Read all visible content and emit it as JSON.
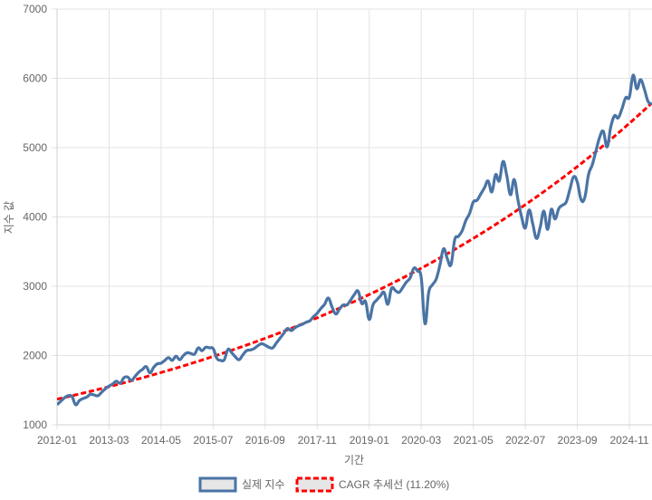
{
  "chart_data": {
    "type": "line",
    "title": "",
    "xlabel": "기간",
    "ylabel": "지수 값",
    "ylim": [
      1000,
      7000
    ],
    "yticks": [
      1000,
      2000,
      3000,
      4000,
      5000,
      6000,
      7000
    ],
    "xticks": [
      "2012-01",
      "2013-03",
      "2014-05",
      "2015-07",
      "2016-09",
      "2017-11",
      "2019-01",
      "2020-03",
      "2021-05",
      "2022-07",
      "2023-09",
      "2024-11"
    ],
    "grid": true,
    "legend_position": "bottom",
    "x": [
      "2012-01",
      "2012-02",
      "2012-03",
      "2012-04",
      "2012-05",
      "2012-06",
      "2012-07",
      "2012-08",
      "2012-09",
      "2012-10",
      "2012-11",
      "2012-12",
      "2013-01",
      "2013-02",
      "2013-03",
      "2013-04",
      "2013-05",
      "2013-06",
      "2013-07",
      "2013-08",
      "2013-09",
      "2013-10",
      "2013-11",
      "2013-12",
      "2014-01",
      "2014-02",
      "2014-03",
      "2014-04",
      "2014-05",
      "2014-06",
      "2014-07",
      "2014-08",
      "2014-09",
      "2014-10",
      "2014-11",
      "2014-12",
      "2015-01",
      "2015-02",
      "2015-03",
      "2015-04",
      "2015-05",
      "2015-06",
      "2015-07",
      "2015-08",
      "2015-09",
      "2015-10",
      "2015-11",
      "2015-12",
      "2016-01",
      "2016-02",
      "2016-03",
      "2016-04",
      "2016-05",
      "2016-06",
      "2016-07",
      "2016-08",
      "2016-09",
      "2016-10",
      "2016-11",
      "2016-12",
      "2017-01",
      "2017-02",
      "2017-03",
      "2017-04",
      "2017-05",
      "2017-06",
      "2017-07",
      "2017-08",
      "2017-09",
      "2017-10",
      "2017-11",
      "2017-12",
      "2018-01",
      "2018-02",
      "2018-03",
      "2018-04",
      "2018-05",
      "2018-06",
      "2018-07",
      "2018-08",
      "2018-09",
      "2018-10",
      "2018-11",
      "2018-12",
      "2019-01",
      "2019-02",
      "2019-03",
      "2019-04",
      "2019-05",
      "2019-06",
      "2019-07",
      "2019-08",
      "2019-09",
      "2019-10",
      "2019-11",
      "2019-12",
      "2020-01",
      "2020-02",
      "2020-03",
      "2020-04",
      "2020-05",
      "2020-06",
      "2020-07",
      "2020-08",
      "2020-09",
      "2020-10",
      "2020-11",
      "2020-12",
      "2021-01",
      "2021-02",
      "2021-03",
      "2021-04",
      "2021-05",
      "2021-06",
      "2021-07",
      "2021-08",
      "2021-09",
      "2021-10",
      "2021-11",
      "2021-12",
      "2022-01",
      "2022-02",
      "2022-03",
      "2022-04",
      "2022-05",
      "2022-06",
      "2022-07",
      "2022-08",
      "2022-09",
      "2022-10",
      "2022-11",
      "2022-12",
      "2023-01",
      "2023-02",
      "2023-03",
      "2023-04",
      "2023-05",
      "2023-06",
      "2023-07",
      "2023-08",
      "2023-09",
      "2023-10",
      "2023-11",
      "2023-12",
      "2024-01",
      "2024-02",
      "2024-03",
      "2024-04",
      "2024-05",
      "2024-06",
      "2024-07",
      "2024-08",
      "2024-09",
      "2024-10",
      "2024-11",
      "2024-12",
      "2025-01",
      "2025-02",
      "2025-03",
      "2025-04",
      "2025-05"
    ],
    "series": [
      {
        "name": "실제 지수",
        "color": "#4a74a5",
        "style": "solid",
        "values": [
          1290,
          1340,
          1390,
          1420,
          1410,
          1290,
          1350,
          1380,
          1400,
          1440,
          1430,
          1420,
          1470,
          1520,
          1560,
          1590,
          1630,
          1600,
          1680,
          1690,
          1640,
          1700,
          1760,
          1800,
          1840,
          1750,
          1830,
          1880,
          1890,
          1930,
          1970,
          1930,
          1990,
          1940,
          2000,
          2040,
          2030,
          2020,
          2110,
          2070,
          2120,
          2110,
          2100,
          1960,
          1930,
          1940,
          2090,
          2040,
          1980,
          1940,
          2010,
          2070,
          2080,
          2100,
          2140,
          2170,
          2150,
          2120,
          2110,
          2180,
          2250,
          2320,
          2390,
          2360,
          2400,
          2430,
          2450,
          2480,
          2500,
          2560,
          2610,
          2680,
          2740,
          2830,
          2700,
          2600,
          2670,
          2730,
          2730,
          2800,
          2880,
          2930,
          2750,
          2780,
          2520,
          2730,
          2800,
          2860,
          2910,
          2740,
          2970,
          2940,
          2910,
          2980,
          3060,
          3120,
          3260,
          3220,
          3120,
          2460,
          2910,
          3020,
          3100,
          3300,
          3540,
          3400,
          3310,
          3670,
          3720,
          3800,
          3950,
          4050,
          4215,
          4240,
          4330,
          4420,
          4520,
          4360,
          4610,
          4520,
          4800,
          4600,
          4320,
          4540,
          4250,
          4000,
          3840,
          4100,
          3900,
          3690,
          3850,
          4085,
          3820,
          4110,
          3970,
          4120,
          4170,
          4215,
          4400,
          4580,
          4500,
          4250,
          4280,
          4610,
          4750,
          4950,
          5150,
          5235,
          5010,
          5300,
          5460,
          5430,
          5560,
          5720,
          5730,
          6045,
          5850,
          5980,
          5850,
          5670,
          5630
        ]
      },
      {
        "name": "CAGR 추세선 (11.20%)",
        "color": "#ff0000",
        "style": "dashed",
        "cagr": 0.112,
        "start_value": 1370
      }
    ]
  }
}
